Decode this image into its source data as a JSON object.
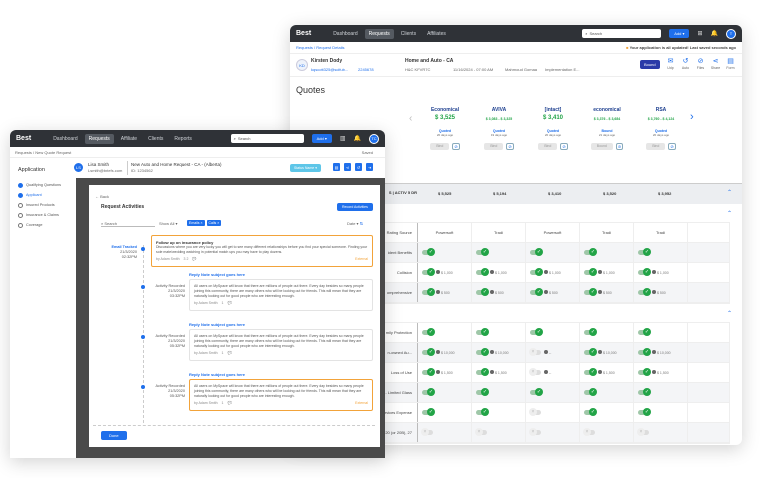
{
  "back": {
    "nav": {
      "logo": "Best",
      "items": [
        "Dashboard",
        "Requests",
        "Clients",
        "Affiliates"
      ],
      "active": 1,
      "search_placeholder": "Search",
      "add": "Add ▾",
      "avatar": "T"
    },
    "breadcrumb": "Requests / Request Details",
    "notice": "Your application is all updated! Last saved seconds ago",
    "client": {
      "initials": "KD",
      "name": "Kirsten Dody",
      "email": "kqscott325@scifub...",
      "phone": "2245678"
    },
    "request": {
      "title": "Home and Auto - CA",
      "id": "H&C KFVR7C",
      "date": "11/16/2024 - 07:00 AM",
      "agent": "Mahmoud Gomaa",
      "stage": "Implementation E..."
    },
    "bound_btn": "Bound",
    "actions": [
      "Udp",
      "Auto",
      "Files",
      "Share",
      "Form"
    ],
    "quotes_title": "Quotes",
    "carriers": [
      {
        "name": "Economical",
        "price": "$ 3,525",
        "range": "",
        "status": "Quoted",
        "age": "20 days ago",
        "bind": "Bind"
      },
      {
        "name": "AVIVA",
        "price": "",
        "range": "$ 3,083 - $ 3,325",
        "status": "Quoted",
        "age": "19 days ago",
        "bind": "Bind"
      },
      {
        "name": "[intact]",
        "price": "$ 3,410",
        "range": "",
        "status": "Quoted",
        "age": "20 days ago",
        "bind": "Bind"
      },
      {
        "name": "economical",
        "price": "",
        "range": "$ 3,376 - $ 3,684",
        "status": "Bound",
        "age": "21 days ago",
        "bind": "Bound"
      },
      {
        "name": "RSA",
        "price": "",
        "range": "$ 3,760 - $ 4,124",
        "status": "Quoted",
        "age": "20 days ago",
        "bind": "Bind"
      }
    ],
    "summary": {
      "label": "S | ACTIV 5 DR",
      "values": [
        "$ 5,525",
        "$ 5,194",
        "$ 3,410",
        "$ 3,520",
        "$ 3,952"
      ]
    },
    "section1": [
      {
        "label": "Rating Source",
        "text": [
          "Powersoft",
          "Tradi",
          "Powersoft",
          "Tradi",
          "Tradi"
        ]
      },
      {
        "label": "ident Benefits",
        "on": [
          1,
          1,
          1,
          1,
          1
        ],
        "vals": [
          "",
          "",
          "",
          "",
          ""
        ]
      },
      {
        "label": "Collision",
        "on": [
          1,
          1,
          1,
          1,
          1
        ],
        "vals": [
          "$ 1,000",
          "$ 1,000",
          "$ 1,000",
          "$ 1,000",
          "$ 1,000"
        ]
      },
      {
        "label": "omprehensive",
        "on": [
          1,
          1,
          1,
          1,
          1
        ],
        "vals": [
          "$ 500",
          "$ 500",
          "$ 500",
          "$ 500",
          "$ 500"
        ]
      }
    ],
    "section2": [
      {
        "label": "mily Protection",
        "on": [
          1,
          1,
          1,
          1,
          1
        ],
        "vals": [
          "",
          "",
          "",
          "",
          ""
        ]
      },
      {
        "label": "n-owned Au...",
        "on": [
          1,
          1,
          0,
          1,
          1
        ],
        "vals": [
          "$ 10,000",
          "$ 10,000",
          "--",
          "$ 10,000",
          "$ 10,000"
        ]
      },
      {
        "label": "Loss of Use",
        "on": [
          1,
          1,
          0,
          1,
          1
        ],
        "vals": [
          "$ 1,500",
          "$ 1,500",
          "--",
          "$ 1,500",
          "$ 1,500"
        ]
      },
      {
        "label": "- Limited Glass",
        "on": [
          1,
          1,
          1,
          1,
          1
        ],
        "vals": [
          "",
          "",
          "",
          "",
          ""
        ]
      },
      {
        "label": "ervices Expense",
        "on": [
          1,
          1,
          0,
          1,
          1
        ],
        "vals": [
          "",
          "",
          "",
          "",
          ""
        ]
      },
      {
        "label": "20 (or 20B), 27",
        "on": [
          0,
          0,
          0,
          0,
          0
        ],
        "vals": [
          "",
          "",
          "",
          "",
          ""
        ]
      }
    ]
  },
  "front": {
    "nav": {
      "logo": "Best",
      "items": [
        "Dashboard",
        "Requests",
        "Affiliate",
        "Clients",
        "Reports"
      ],
      "active": 1,
      "search_placeholder": "Search",
      "add": "Add ▾",
      "avatar": "TC"
    },
    "breadcrumb": "Requests / New Quote Request",
    "save": "Saved",
    "sidebar": {
      "title": "Application",
      "steps": [
        "Qualifying Questions",
        "Applicant",
        "Insured Products",
        "Insurance & Claims",
        "Coverage"
      ],
      "active": 1
    },
    "client": {
      "initials": "LS",
      "name": "Lisa Smith",
      "email": "Lsmith@briefs.com"
    },
    "request": {
      "title": "New Auto and Home Request - CA - (Alberta)",
      "id": "ID: 1234562"
    },
    "status_btn": "Status Name ▾",
    "modal": {
      "back": "Back",
      "title": "Request Activities",
      "record_btn": "Record Activities",
      "search_placeholder": "Search",
      "show": "Show All ▾",
      "chips": [
        "Emails ×",
        "Calls ×"
      ],
      "sort": "Date ▾",
      "first": {
        "type": "Email Tracked",
        "date": "21/3/2020",
        "time": "02:32PM",
        "subject": "Follow up on insurance policy",
        "body": "Discussions where you are very lucky you will get to see many different relationships before you find your special someone. Finding your sole mate/wedding watching in potential match ups you may have to play dozens.",
        "by": "by Adam Smith",
        "meta": "3 2",
        "tag": "External"
      },
      "items": [
        {
          "type": "Activity Recorded",
          "date": "21/3/2020",
          "time": "03:32PM",
          "subject": "Reply Note subject goes here",
          "body": "All users on MySpace will know that there are millions of people out there. Every day besides so many people joining this community, there are many others who will be looking out for friends. This will mean that they are naturally looking out for good people who are interesting enough.",
          "by": "by Adam Smith",
          "meta": "1",
          "tag": ""
        },
        {
          "type": "Activity Recorded",
          "date": "21/3/2020",
          "time": "05:32PM",
          "subject": "Reply Note subject goes here",
          "body": "All users on MySpace will know that there are millions of people out there. Every day besides so many people joining this community, there are many others who will be looking out for friends. This will mean that they are naturally looking out for good people who are interesting enough.",
          "by": "by Adam Smith",
          "meta": "1",
          "tag": ""
        },
        {
          "type": "Activity Recorded",
          "date": "21/3/2020",
          "time": "05:32PM",
          "subject": "Reply Note subject goes here",
          "body": "All users on MySpace will know that there are millions of people out there. Every day besides so many people joining this community, there are many others who will be looking out for friends. This will mean that they are naturally looking out for good people who are interesting enough.",
          "by": "by Adam Smith",
          "meta": "1",
          "tag": "External"
        }
      ],
      "done": "Done"
    }
  },
  "colors": {
    "accent": "#1f6feb",
    "nav": "#2f3237",
    "success": "#22a447",
    "warning": "#f2a33a",
    "bound": "#2a3aa8"
  }
}
